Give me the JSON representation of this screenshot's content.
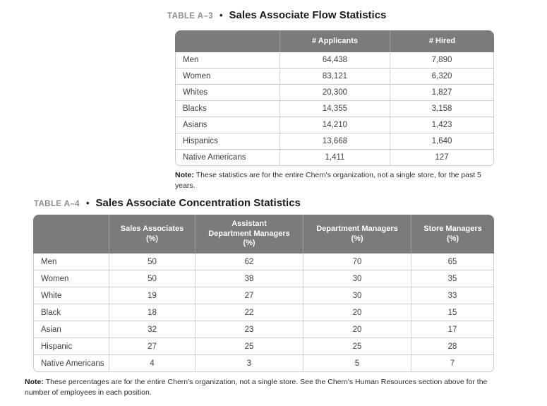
{
  "colors": {
    "page_background": "#ffffff",
    "header_background": "#7b7b7b",
    "header_text": "#ffffff",
    "body_text": "#414141",
    "table_border": "#cbcbcb",
    "title_label_gray": "#8d8d8d",
    "title_text": "#1b1b1b"
  },
  "table_a3": {
    "label": "TABLE A–3",
    "bullet": "•",
    "title": "Sales Associate Flow Statistics",
    "columns": [
      "",
      "# Applicants",
      "# Hired"
    ],
    "rows": [
      {
        "label": "Men",
        "values": [
          "64,438",
          "7,890"
        ]
      },
      {
        "label": "Women",
        "values": [
          "83,121",
          "6,320"
        ]
      },
      {
        "label": "Whites",
        "values": [
          "20,300",
          "1,827"
        ]
      },
      {
        "label": "Blacks",
        "values": [
          "14,355",
          "3,158"
        ]
      },
      {
        "label": "Asians",
        "values": [
          "14,210",
          "1,423"
        ]
      },
      {
        "label": "Hispanics",
        "values": [
          "13,668",
          "1,640"
        ]
      },
      {
        "label": "Native Americans",
        "values": [
          "1,411",
          "127"
        ]
      }
    ],
    "note_label": "Note:",
    "note_text": "These statistics are for the entire Chern's organization, not a single store, for the past 5 years."
  },
  "table_a4": {
    "label": "TABLE A–4",
    "bullet": "•",
    "title": "Sales Associate Concentration Statistics",
    "columns": [
      "",
      "Sales Associates\n(%)",
      "Assistant\nDepartment Managers\n(%)",
      "Department Managers\n(%)",
      "Store Managers\n(%)"
    ],
    "rows": [
      {
        "label": "Men",
        "values": [
          "50",
          "62",
          "70",
          "65"
        ]
      },
      {
        "label": "Women",
        "values": [
          "50",
          "38",
          "30",
          "35"
        ]
      },
      {
        "label": "White",
        "values": [
          "19",
          "27",
          "30",
          "33"
        ]
      },
      {
        "label": "Black",
        "values": [
          "18",
          "22",
          "20",
          "15"
        ]
      },
      {
        "label": "Asian",
        "values": [
          "32",
          "23",
          "20",
          "17"
        ]
      },
      {
        "label": "Hispanic",
        "values": [
          "27",
          "25",
          "25",
          "28"
        ]
      },
      {
        "label": "Native Americans",
        "values": [
          "4",
          "3",
          "5",
          "7"
        ]
      }
    ],
    "note_label": "Note:",
    "note_text": "These percentages are for the entire Chern's organization, not a single store. See the Chern's Human Resources section above for the number of employees in each position."
  }
}
